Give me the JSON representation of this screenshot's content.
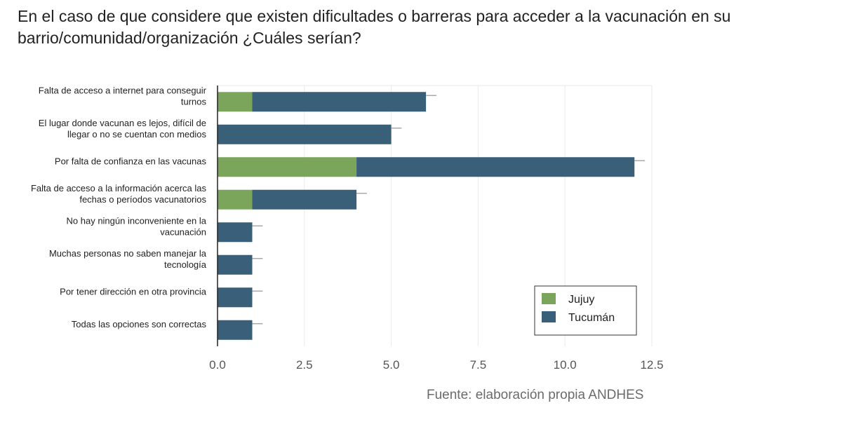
{
  "title": "En el caso de que considere que existen dificultades o barreras para acceder a la vacunación en su barrio/comunidad/organización ¿Cuáles serían?",
  "source": "Fuente: elaboración propia ANDHES",
  "colors": {
    "Jujuy": "#7aa55a",
    "Tucumán": "#3a5f78",
    "errorbar": "#aaaaaa",
    "grid": "#e9e9ee",
    "axis": "#222222"
  },
  "chart_data": {
    "type": "bar",
    "orientation": "horizontal",
    "stacked": true,
    "title": "En el caso de que considere que existen dificultades o barreras para acceder a la vacunación en su barrio/comunidad/organización ¿Cuáles serían?",
    "xlabel": "",
    "ylabel": "",
    "xlim": [
      0,
      12.5
    ],
    "xticks": [
      0,
      2.5,
      5,
      7.5,
      10,
      12.5
    ],
    "xtick_labels": [
      "0.0",
      "2.5",
      "5.0",
      "7.5",
      "10.0",
      "12.5"
    ],
    "grid": true,
    "legend_position": "bottom-right",
    "categories": [
      [
        "Falta de acceso a internet para conseguir",
        "turnos"
      ],
      [
        "El lugar donde vacunan es lejos, difícil de",
        "llegar o no se cuentan con medios"
      ],
      [
        "Por falta de confianza en las vacunas"
      ],
      [
        "Falta de acceso a la información acerca las",
        "fechas o períodos vacunatorios"
      ],
      [
        "No hay ningún inconveniente en la",
        "vacunación"
      ],
      [
        "Muchas personas no saben manejar la",
        "tecnología"
      ],
      [
        "Por tener dirección en otra provincia"
      ],
      [
        "Todas las opciones son correctas"
      ]
    ],
    "series": [
      {
        "name": "Jujuy",
        "values": [
          1,
          0,
          4,
          1,
          0,
          0,
          0,
          0
        ]
      },
      {
        "name": "Tucumán",
        "values": [
          5,
          5,
          8,
          3,
          1,
          1,
          1,
          1
        ]
      }
    ],
    "error_bar_extent": 0.3
  }
}
